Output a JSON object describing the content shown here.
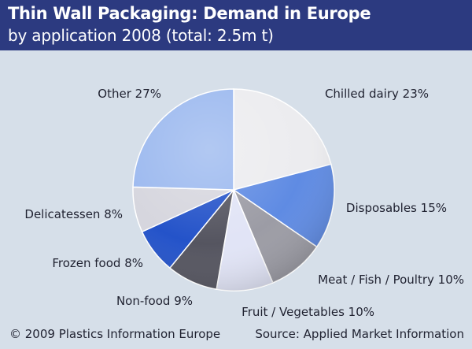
{
  "header": {
    "title": "Thin Wall Packaging: Demand in Europe",
    "subtitle": "by application 2008 (total: 2.5m t)"
  },
  "footer": {
    "copyright": "© 2009 Plastics Information Europe",
    "source": "Source: Applied Market Information"
  },
  "colors": {
    "header_bg": "#2c3a80",
    "background": "#d6dfe9"
  },
  "chart_data": {
    "type": "pie",
    "title": "Thin Wall Packaging: Demand in Europe",
    "subtitle": "by application 2008 (total: 2.5m t)",
    "unit": "%",
    "slices": [
      {
        "label": "Chilled dairy 23%",
        "name": "Chilled dairy",
        "value": 23,
        "color": "#ececef"
      },
      {
        "label": "Disposables 15%",
        "name": "Disposables",
        "value": 15,
        "color": "#5f8be3"
      },
      {
        "label": "Meat / Fish / Poultry 10%",
        "name": "Meat / Fish / Poultry",
        "value": 10,
        "color": "#9c9ca5"
      },
      {
        "label": "Fruit / Vegetables 10%",
        "name": "Fruit / Vegetables",
        "value": 10,
        "color": "#e1e4f6"
      },
      {
        "label": "Non-food 9%",
        "name": "Non-food",
        "value": 9,
        "color": "#555560"
      },
      {
        "label": "Frozen food 8%",
        "name": "Frozen food",
        "value": 8,
        "color": "#2453c9"
      },
      {
        "label": "Delicatessen 8%",
        "name": "Delicatessen",
        "value": 8,
        "color": "#d6d6de"
      },
      {
        "label": "Other 27%",
        "name": "Other",
        "value": 27,
        "color": "#9cb9ef"
      }
    ]
  }
}
